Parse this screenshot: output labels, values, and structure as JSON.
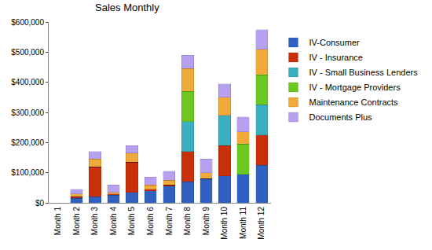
{
  "chart_data": {
    "type": "bar",
    "title": "Sales Monthly",
    "categories": [
      "Month 1",
      "Month 2",
      "Month 3",
      "Month 4",
      "Month 5",
      "Month 6",
      "Month 7",
      "Month 8",
      "Month 9",
      "Month 10",
      "Month 11",
      "Month 12"
    ],
    "series": [
      {
        "name": "IV-Consumer",
        "color": "#3060c0",
        "values": [
          0,
          15000,
          20000,
          25000,
          35000,
          40000,
          55000,
          70000,
          80000,
          90000,
          95000,
          125000
        ]
      },
      {
        "name": "IV - Insurance",
        "color": "#c8300a",
        "values": [
          0,
          5000,
          100000,
          5000,
          100000,
          5000,
          5000,
          100000,
          0,
          100000,
          0,
          100000
        ]
      },
      {
        "name": "IV - Small Business Lenders",
        "color": "#3aafc0",
        "values": [
          0,
          0,
          0,
          0,
          0,
          0,
          0,
          100000,
          0,
          100000,
          0,
          100000
        ]
      },
      {
        "name": "IV - Mortgage Providers",
        "color": "#6cc820",
        "values": [
          0,
          0,
          0,
          0,
          0,
          0,
          0,
          100000,
          0,
          0,
          100000,
          100000
        ]
      },
      {
        "name": "Maintenance Contracts",
        "color": "#f0aa3a",
        "values": [
          0,
          10000,
          25000,
          5000,
          30000,
          15000,
          15000,
          75000,
          20000,
          60000,
          40000,
          85000
        ]
      },
      {
        "name": "Documents Plus",
        "color": "#b8a0f0",
        "values": [
          0,
          15000,
          25000,
          25000,
          25000,
          25000,
          30000,
          45000,
          45000,
          45000,
          50000,
          65000
        ]
      }
    ],
    "ylim": [
      0,
      600000
    ],
    "yticks": [
      {
        "value": 0,
        "label": "$0"
      },
      {
        "value": 100000,
        "label": "$100,000"
      },
      {
        "value": 200000,
        "label": "$200,000"
      },
      {
        "value": 300000,
        "label": "$300,000"
      },
      {
        "value": 400000,
        "label": "$400,000"
      },
      {
        "value": 500000,
        "label": "$500,000"
      },
      {
        "value": 600000,
        "label": "$600,000"
      }
    ],
    "stacked": true,
    "legend": "right",
    "grid": false
  }
}
